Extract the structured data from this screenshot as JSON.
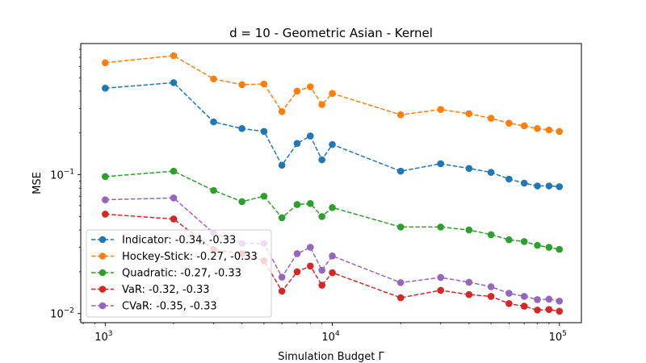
{
  "chart_data": {
    "type": "line",
    "title": "d = 10 - Geometric Asian - Kernel",
    "xlabel": "Simulation Budget Γ",
    "ylabel": "MSE",
    "xscale": "log",
    "yscale": "log",
    "xlim": [
      780,
      125000
    ],
    "ylim": [
      0.0086,
      0.88
    ],
    "x_ticks": [
      {
        "value": 1000,
        "base": "10",
        "exp": "3"
      },
      {
        "value": 10000,
        "base": "10",
        "exp": "4"
      },
      {
        "value": 100000,
        "base": "10",
        "exp": "5"
      }
    ],
    "y_ticks": [
      {
        "value": 0.01,
        "base": "10",
        "exp": "−2"
      },
      {
        "value": 0.1,
        "base": "10",
        "exp": "−1"
      }
    ],
    "grid": false,
    "legend_position": "lower-left",
    "x": [
      1000,
      2000,
      3000,
      4000,
      5000,
      6000,
      7000,
      8000,
      9000,
      10000,
      20000,
      30000,
      40000,
      50000,
      60000,
      70000,
      80000,
      90000,
      100000
    ],
    "series": [
      {
        "name": "Indicator: -0.34, -0.33",
        "color": "#1f77b4",
        "values": [
          0.42,
          0.46,
          0.24,
          0.215,
          0.205,
          0.117,
          0.168,
          0.19,
          0.128,
          0.165,
          0.106,
          0.12,
          0.111,
          0.104,
          0.093,
          0.087,
          0.083,
          0.083,
          0.082
        ]
      },
      {
        "name": "Hockey-Stick: -0.27, -0.33",
        "color": "#ff7f0e",
        "values": [
          0.64,
          0.72,
          0.49,
          0.445,
          0.45,
          0.285,
          0.4,
          0.43,
          0.32,
          0.385,
          0.27,
          0.295,
          0.275,
          0.255,
          0.235,
          0.225,
          0.215,
          0.21,
          0.205
        ]
      },
      {
        "name": "Quadratic: -0.27, -0.33",
        "color": "#2ca02c",
        "values": [
          0.097,
          0.106,
          0.077,
          0.064,
          0.07,
          0.049,
          0.061,
          0.062,
          0.05,
          0.058,
          0.042,
          0.042,
          0.04,
          0.037,
          0.034,
          0.033,
          0.031,
          0.03,
          0.029
        ]
      },
      {
        "name": "VaR: -0.32, -0.33",
        "color": "#d62728",
        "values": [
          0.052,
          0.048,
          0.029,
          0.027,
          0.024,
          0.0145,
          0.02,
          0.022,
          0.016,
          0.0197,
          0.013,
          0.0147,
          0.0137,
          0.0133,
          0.0118,
          0.0113,
          0.0106,
          0.0107,
          0.0104
        ]
      },
      {
        "name": "CVaR: -0.35, -0.33",
        "color": "#9467bd",
        "values": [
          0.066,
          0.068,
          0.038,
          0.032,
          0.032,
          0.0183,
          0.027,
          0.03,
          0.0205,
          0.026,
          0.0167,
          0.0182,
          0.0168,
          0.0156,
          0.014,
          0.0133,
          0.0126,
          0.0127,
          0.0123
        ]
      }
    ]
  }
}
